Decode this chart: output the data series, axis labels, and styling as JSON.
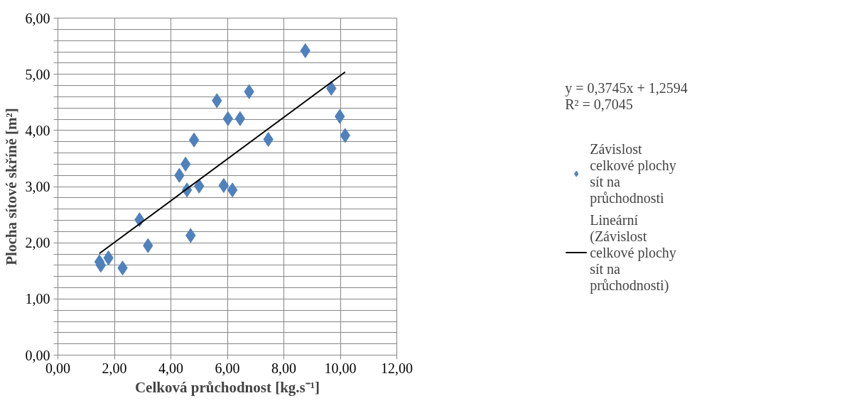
{
  "chart_data": {
    "type": "scatter",
    "xlabel": "Celková průchodnost [kg.s⁻¹]",
    "ylabel": "Plocha sítové skříně [m²]",
    "annotations": [
      "y = 0,3745x + 1,2594",
      "R² = 0,7045"
    ],
    "xlim": [
      0,
      12
    ],
    "ylim": [
      0,
      6
    ],
    "xticks": [
      {
        "value": 0,
        "label": "0,00"
      },
      {
        "value": 2,
        "label": "2,00"
      },
      {
        "value": 4,
        "label": "4,00"
      },
      {
        "value": 6,
        "label": "6,00"
      },
      {
        "value": 8,
        "label": "8,00"
      },
      {
        "value": 10,
        "label": "10,00"
      },
      {
        "value": 12,
        "label": "12,00"
      }
    ],
    "yticks": [
      {
        "value": 0,
        "label": "0,00"
      },
      {
        "value": 0.2,
        "label": null
      },
      {
        "value": 0.4,
        "label": null
      },
      {
        "value": 0.6,
        "label": null
      },
      {
        "value": 0.8,
        "label": null
      },
      {
        "value": 1,
        "label": "1,00"
      },
      {
        "value": 1.2,
        "label": null
      },
      {
        "value": 1.4,
        "label": null
      },
      {
        "value": 1.6,
        "label": null
      },
      {
        "value": 1.8,
        "label": null
      },
      {
        "value": 2,
        "label": "2,00"
      },
      {
        "value": 2.2,
        "label": null
      },
      {
        "value": 2.4,
        "label": null
      },
      {
        "value": 2.6,
        "label": null
      },
      {
        "value": 2.8,
        "label": null
      },
      {
        "value": 3,
        "label": "3,00"
      },
      {
        "value": 3.2,
        "label": null
      },
      {
        "value": 3.4,
        "label": null
      },
      {
        "value": 3.6,
        "label": null
      },
      {
        "value": 3.8,
        "label": null
      },
      {
        "value": 4,
        "label": "4,00"
      },
      {
        "value": 4.2,
        "label": null
      },
      {
        "value": 4.4,
        "label": null
      },
      {
        "value": 4.6,
        "label": null
      },
      {
        "value": 4.8,
        "label": null
      },
      {
        "value": 5,
        "label": "5,00"
      },
      {
        "value": 5.2,
        "label": null
      },
      {
        "value": 5.4,
        "label": null
      },
      {
        "value": 5.6,
        "label": null
      },
      {
        "value": 5.8,
        "label": null
      },
      {
        "value": 6,
        "label": "6,00"
      }
    ],
    "grid": true,
    "legend": "right",
    "series": [
      {
        "name": "Závislost celkové plochy sít na průchodnosti",
        "marker": "diamond",
        "color": "#4f81bd",
        "x": [
          1.47,
          1.52,
          1.79,
          2.29,
          2.89,
          3.19,
          4.3,
          4.52,
          4.57,
          4.7,
          4.82,
          5.0,
          5.63,
          5.87,
          6.02,
          6.18,
          6.45,
          6.77,
          7.45,
          8.76,
          9.68,
          9.98,
          10.17
        ],
        "values": [
          1.66,
          1.6,
          1.73,
          1.55,
          2.41,
          1.95,
          3.2,
          3.4,
          2.94,
          2.13,
          3.83,
          3.01,
          4.53,
          3.02,
          4.21,
          2.94,
          4.21,
          4.69,
          3.84,
          5.42,
          4.75,
          4.25,
          3.91
        ]
      },
      {
        "name": "Lineární (Závislost celkové plochy sít na průchodnosti)",
        "type": "line",
        "color": "#000000",
        "x": [
          1.47,
          10.17
        ],
        "values": [
          1.81,
          5.04
        ]
      }
    ]
  }
}
